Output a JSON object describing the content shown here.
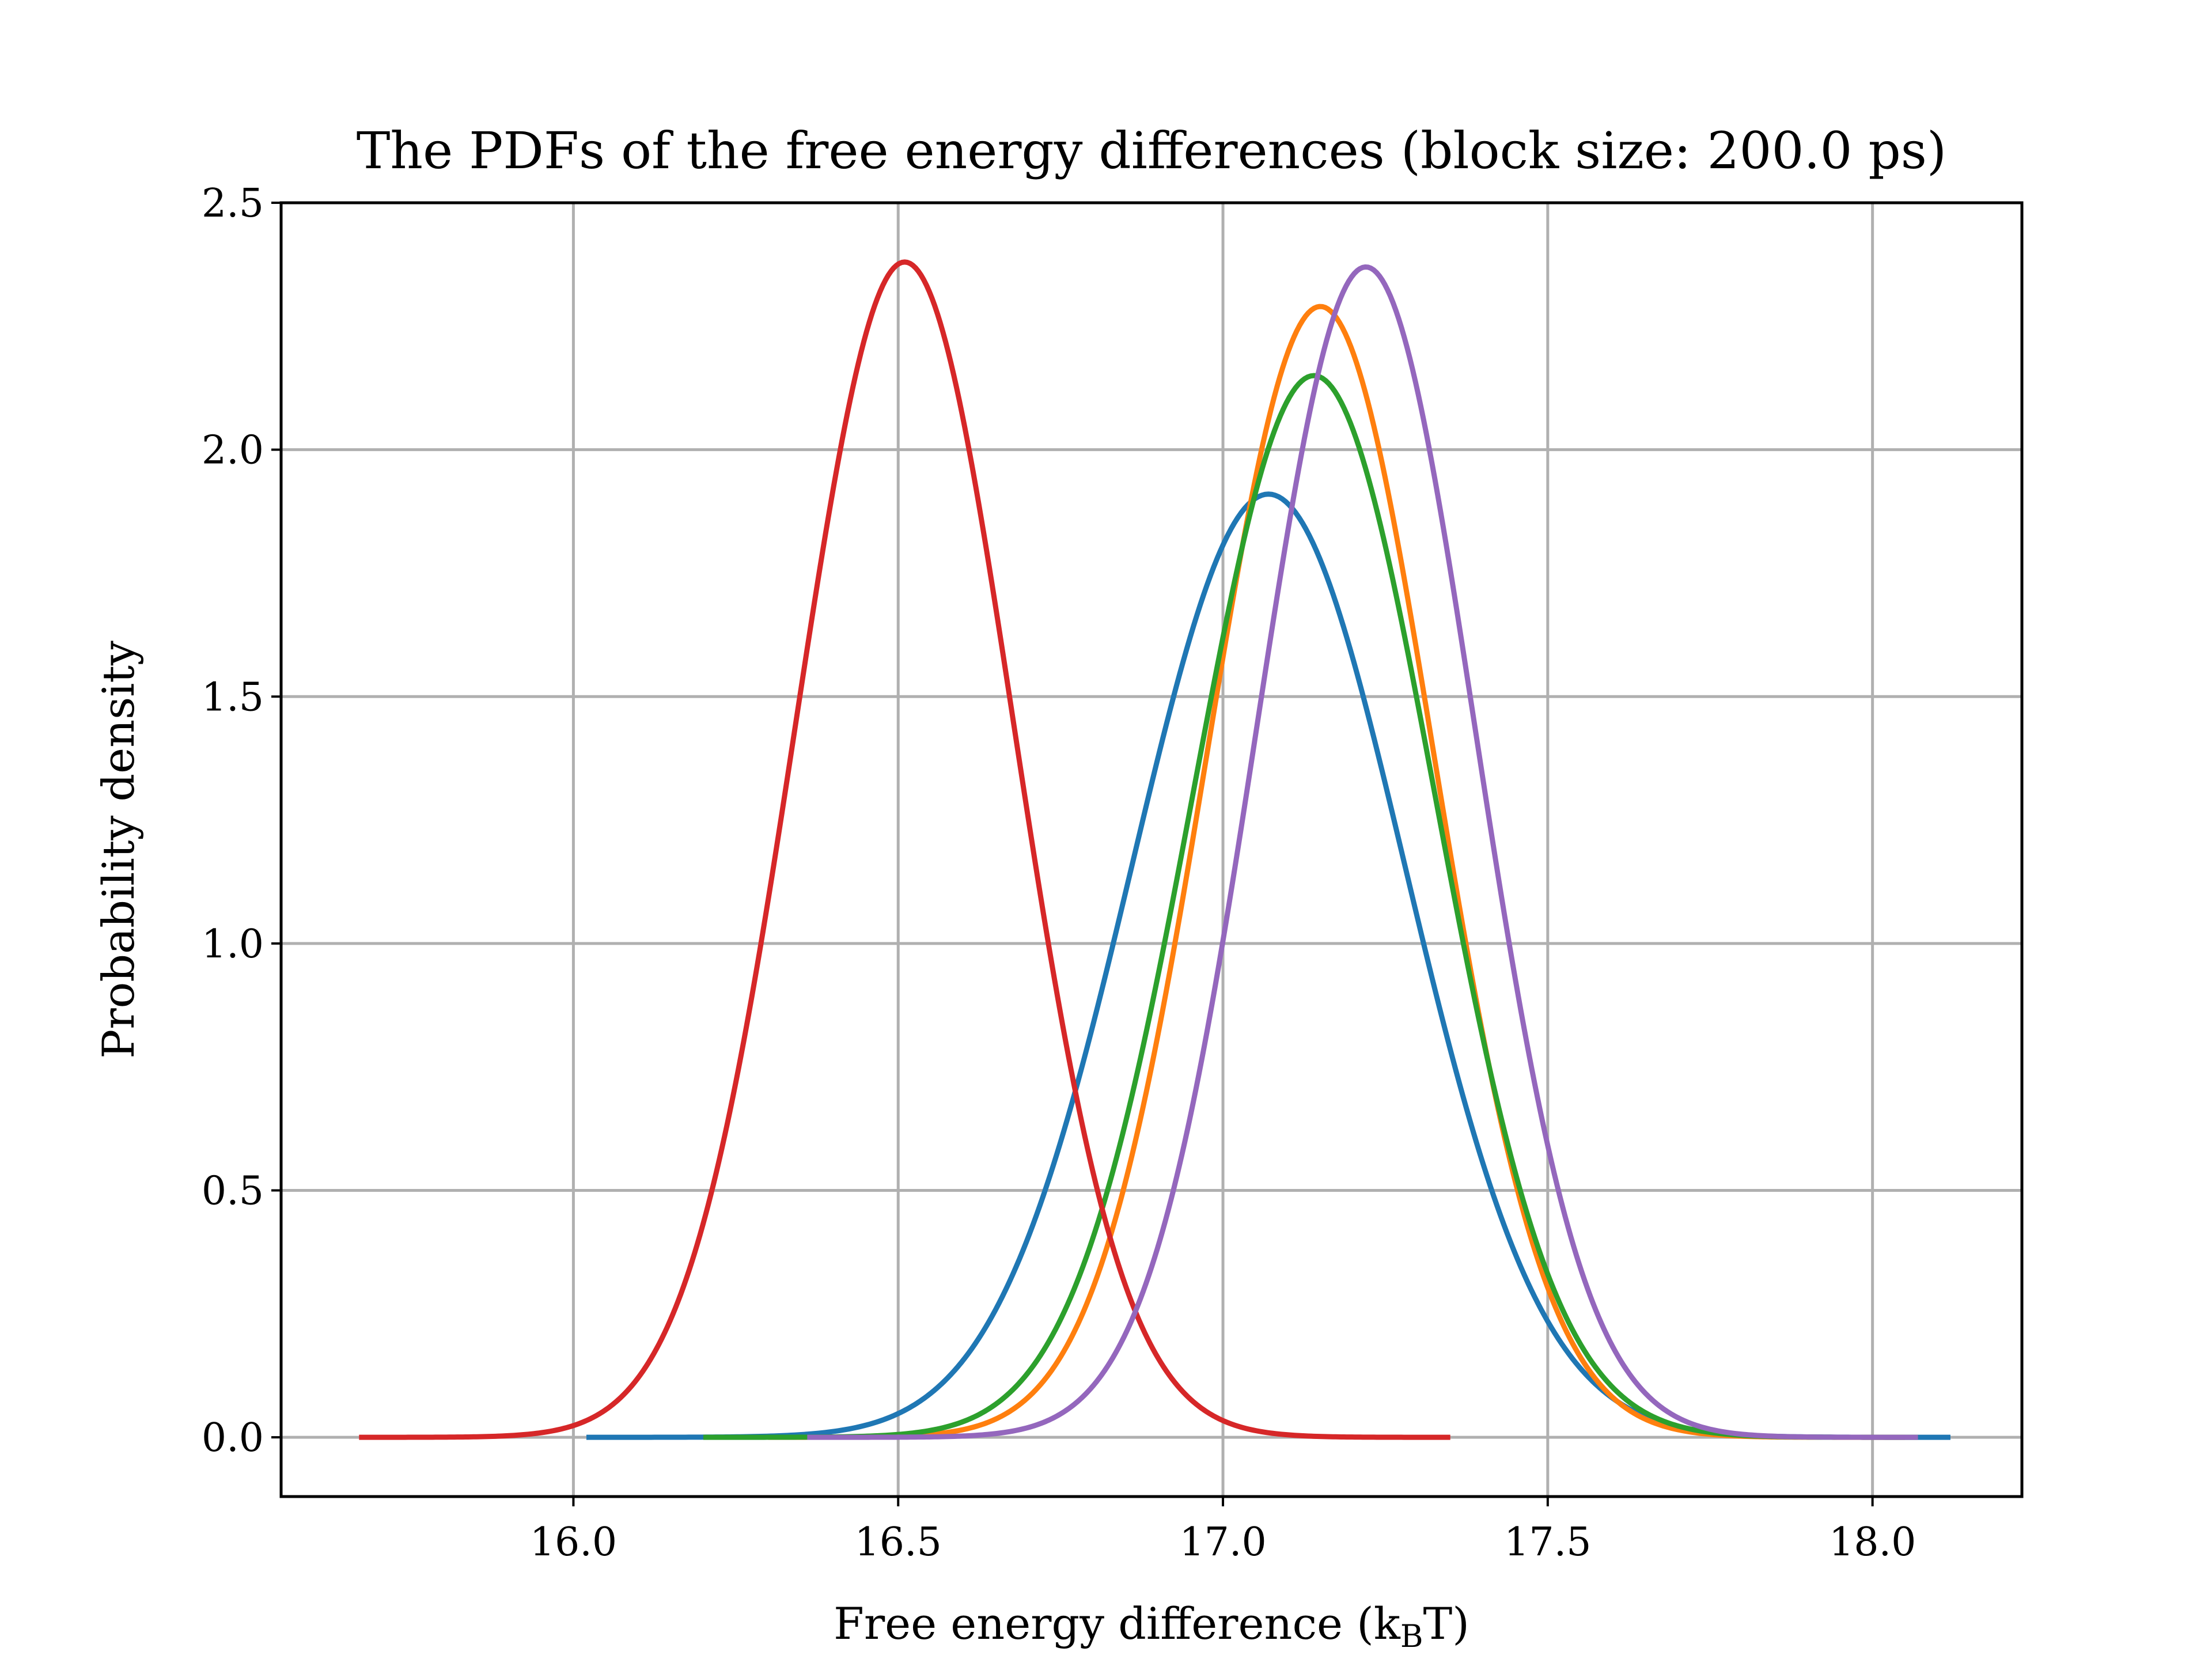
{
  "chart_data": {
    "type": "line",
    "title": "The PDFs of the free energy differences (block size: 200.0 ps)",
    "xlabel": "Free energy difference (k",
    "xlabel_sub": "B",
    "xlabel_end": "T)",
    "ylabel": "Probability density",
    "xlim": [
      15.55,
      18.23
    ],
    "ylim": [
      -0.12,
      2.5
    ],
    "xticks": [
      16.0,
      16.5,
      17.0,
      17.5,
      18.0
    ],
    "xtick_labels": [
      "16.0",
      "16.5",
      "17.0",
      "17.5",
      "18.0"
    ],
    "yticks": [
      0.0,
      0.5,
      1.0,
      1.5,
      2.0,
      2.5
    ],
    "ytick_labels": [
      "0.0",
      "0.5",
      "1.0",
      "1.5",
      "2.0",
      "2.5"
    ],
    "grid": true,
    "series": [
      {
        "color": "#1f77b4",
        "mean": 17.07,
        "sd": 0.21,
        "peak": 1.91,
        "xrange": [
          16.02,
          18.12
        ]
      },
      {
        "color": "#ff7f0e",
        "mean": 17.15,
        "sd": 0.174,
        "peak": 2.29,
        "xrange": [
          16.3,
          18.05
        ]
      },
      {
        "color": "#2ca02c",
        "mean": 17.14,
        "sd": 0.186,
        "peak": 2.15,
        "xrange": [
          16.2,
          18.07
        ]
      },
      {
        "color": "#d62728",
        "mean": 16.51,
        "sd": 0.168,
        "peak": 2.38,
        "xrange": [
          15.67,
          17.35
        ]
      },
      {
        "color": "#9467bd",
        "mean": 17.22,
        "sd": 0.168,
        "peak": 2.37,
        "xrange": [
          16.36,
          18.07
        ]
      }
    ]
  }
}
